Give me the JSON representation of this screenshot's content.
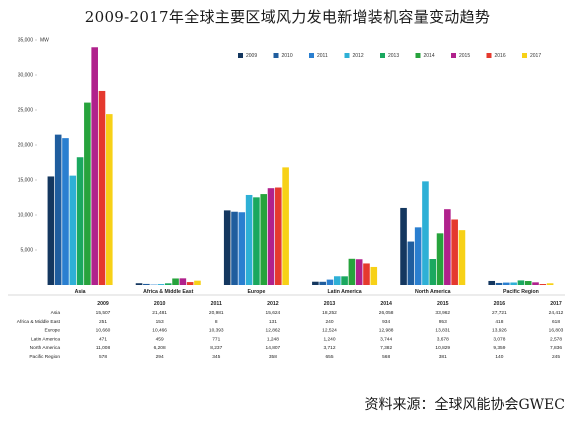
{
  "title": "2009-2017年全球主要区域风力发电新增装机容量变动趋势",
  "source": "资料来源：全球风能协会GWEC",
  "chart_data": {
    "type": "bar",
    "categories": [
      "Asia",
      "Africa & Middle East",
      "Europe",
      "Latin America",
      "North America",
      "Pacific Region"
    ],
    "ylim": [
      0,
      35000
    ],
    "yticks": [
      5000,
      10000,
      15000,
      20000,
      25000,
      30000,
      35000
    ],
    "ytick_labels": [
      "5,000",
      "10,000",
      "15,000",
      "20,000",
      "25,000",
      "30,000",
      "35,000"
    ],
    "yunit": "MW",
    "legend_position": "top-right",
    "grid": false,
    "series": [
      {
        "name": "2009",
        "color": "#14375f",
        "values": [
          15507,
          251,
          10660,
          471,
          11008,
          578
        ]
      },
      {
        "name": "2010",
        "color": "#1f5d9e",
        "values": [
          21481,
          153,
          10466,
          459,
          6208,
          294
        ]
      },
      {
        "name": "2011",
        "color": "#2a7fd0",
        "values": [
          20981,
          8,
          10393,
          771,
          8237,
          345
        ]
      },
      {
        "name": "2012",
        "color": "#2eb0d6",
        "values": [
          15624,
          131,
          12862,
          1248,
          14807,
          358
        ]
      },
      {
        "name": "2013",
        "color": "#1aa85f",
        "values": [
          18252,
          240,
          12524,
          1240,
          3712,
          655
        ]
      },
      {
        "name": "2014",
        "color": "#27a33c",
        "values": [
          26058,
          934,
          12988,
          3744,
          7382,
          568
        ]
      },
      {
        "name": "2015",
        "color": "#b0218c",
        "values": [
          33962,
          953,
          13831,
          3678,
          10829,
          381
        ]
      },
      {
        "name": "2016",
        "color": "#e5392e",
        "values": [
          27721,
          418,
          13926,
          3078,
          9359,
          140
        ]
      },
      {
        "name": "2017",
        "color": "#f7d117",
        "values": [
          24412,
          618,
          16803,
          2578,
          7836,
          245
        ]
      }
    ],
    "table": {
      "years": [
        "2009",
        "2010",
        "2011",
        "2012",
        "2013",
        "2014",
        "2015",
        "2016",
        "2017"
      ],
      "rows": [
        {
          "label": "Asia",
          "values": [
            "15,507",
            "21,481",
            "20,981",
            "15,624",
            "18,252",
            "26,058",
            "33,962",
            "27,721",
            "24,412"
          ]
        },
        {
          "label": "Africa & Middle East",
          "values": [
            "251",
            "153",
            "8",
            "131",
            "240",
            "934",
            "953",
            "418",
            "618"
          ]
        },
        {
          "label": "Europe",
          "values": [
            "10,660",
            "10,466",
            "10,393",
            "12,862",
            "12,524",
            "12,988",
            "13,831",
            "13,926",
            "16,803"
          ]
        },
        {
          "label": "Latin America",
          "values": [
            "471",
            "459",
            "771",
            "1,248",
            "1,240",
            "3,744",
            "3,678",
            "3,078",
            "2,578"
          ]
        },
        {
          "label": "North America",
          "values": [
            "11,008",
            "6,208",
            "8,237",
            "14,807",
            "3,712",
            "7,382",
            "10,829",
            "9,359",
            "7,836"
          ]
        },
        {
          "label": "Pacific Region",
          "values": [
            "578",
            "294",
            "345",
            "358",
            "655",
            "568",
            "381",
            "140",
            "245"
          ]
        }
      ]
    }
  }
}
